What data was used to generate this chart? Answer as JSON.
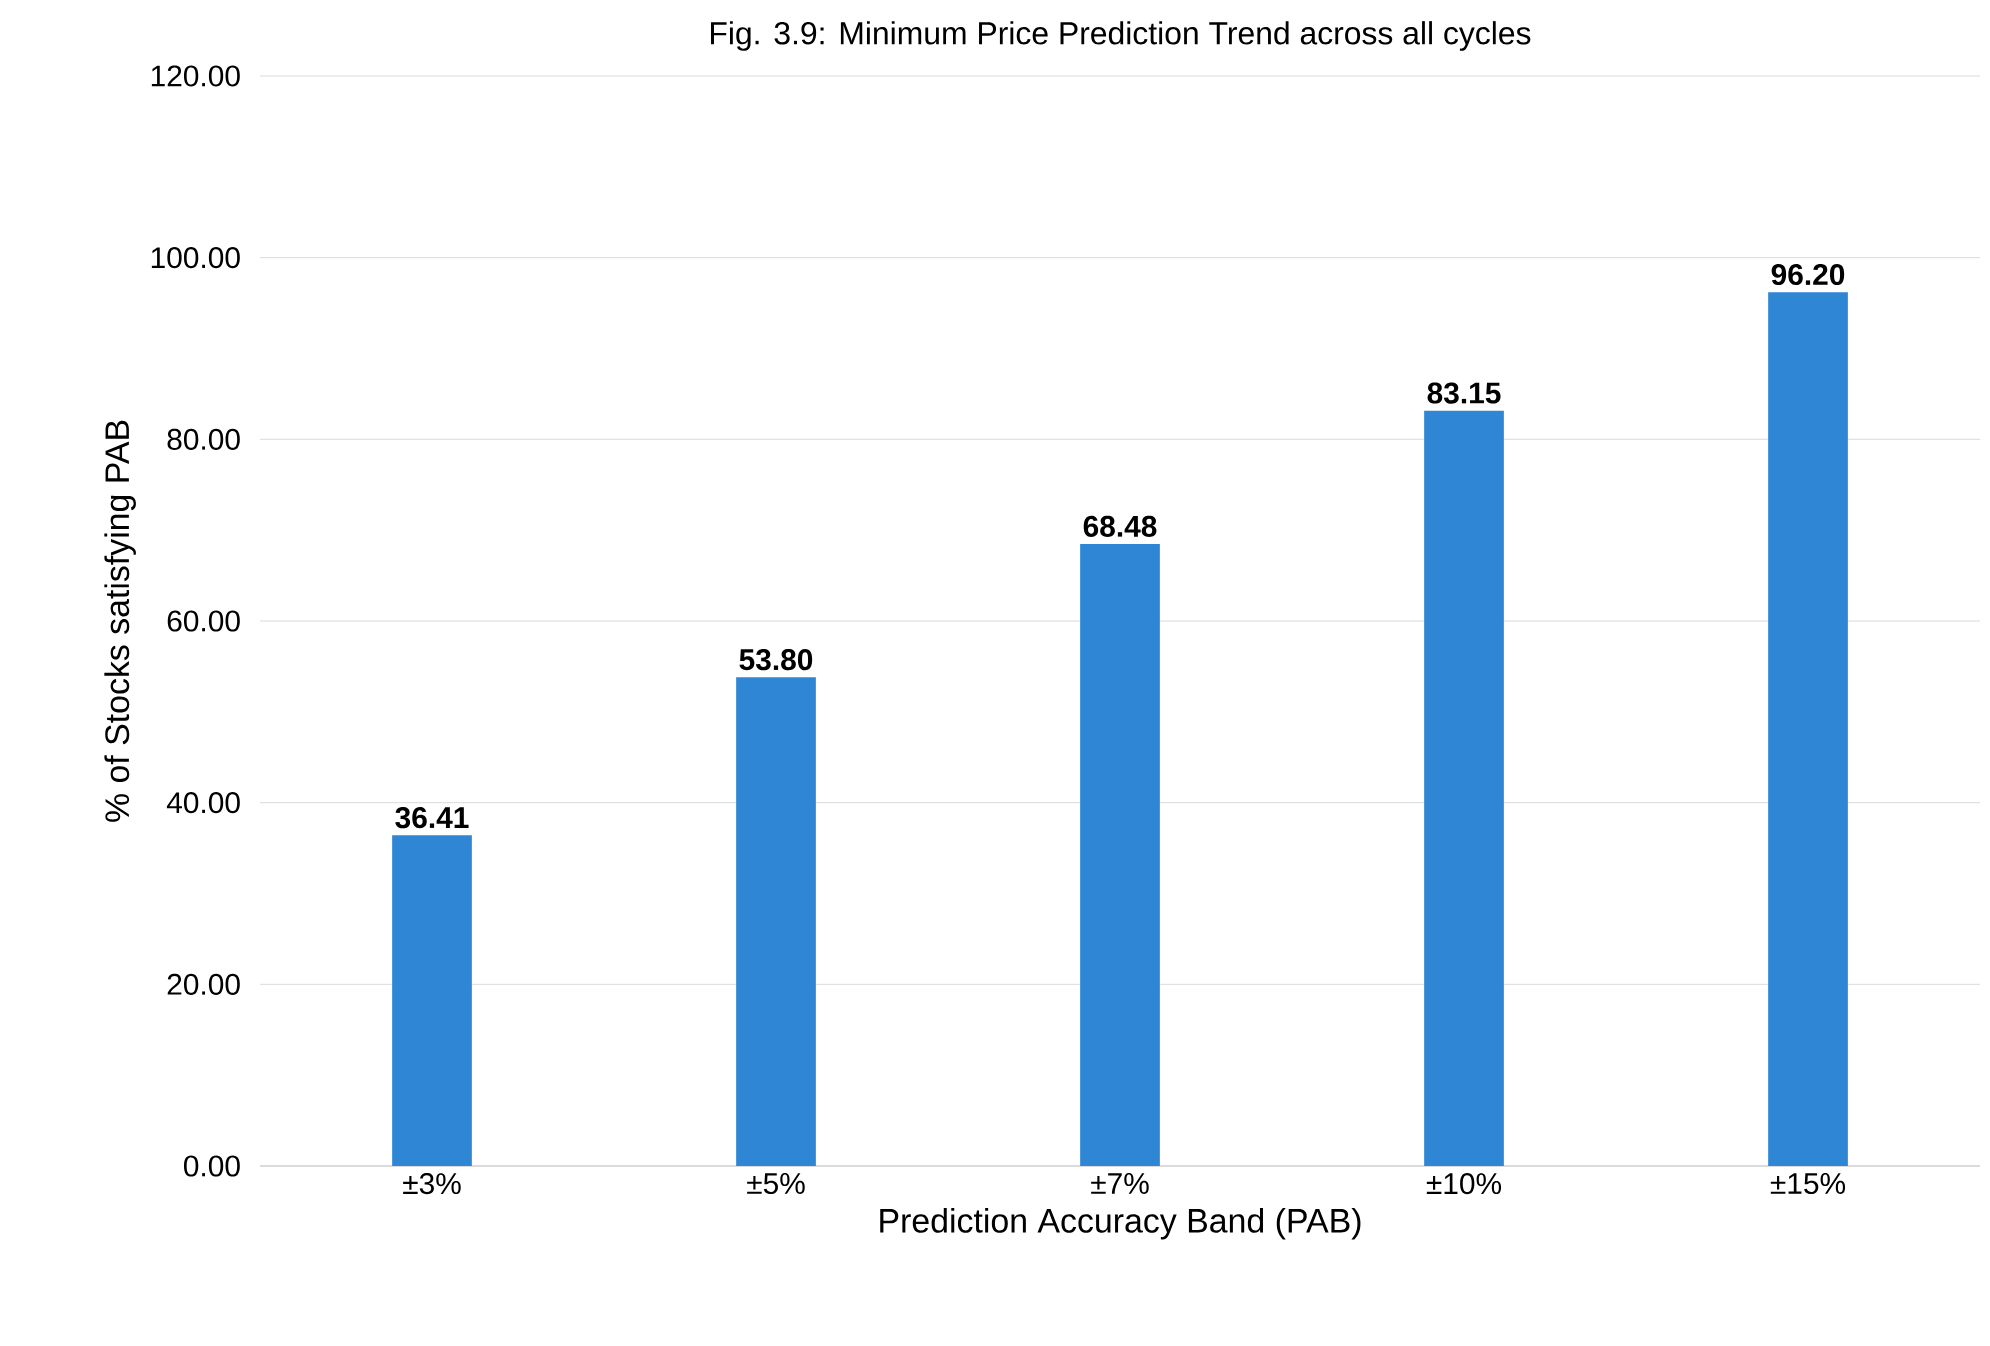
{
  "chart_data": {
    "type": "bar",
    "title": "Fig. 3.9: Minimum Price Prediction Trend across all cycles",
    "xlabel": "Prediction Accuracy Band (PAB)",
    "ylabel": "% of Stocks satisfying PAB",
    "categories": [
      "±3%",
      "±5%",
      "±7%",
      "±10%",
      "±15%"
    ],
    "values": [
      36.41,
      53.8,
      68.48,
      83.15,
      96.2
    ],
    "value_labels": [
      "36.41",
      "53.80",
      "68.48",
      "83.15",
      "96.20"
    ],
    "color": "#2e86d4",
    "ylim": [
      0,
      120
    ],
    "yticks": [
      {
        "value": 0,
        "label": "0.00"
      },
      {
        "value": 20,
        "label": "20.00"
      },
      {
        "value": 40,
        "label": "40.00"
      },
      {
        "value": 60,
        "label": "60.00"
      },
      {
        "value": 80,
        "label": "80.00"
      },
      {
        "value": 100,
        "label": "100.00"
      },
      {
        "value": 120,
        "label": "120.00"
      }
    ],
    "grid": "y"
  }
}
